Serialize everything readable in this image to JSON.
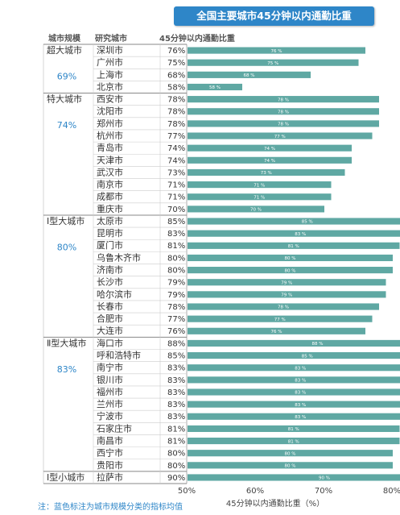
{
  "title": "全国主要城市45分钟以内通勤比重",
  "headers": {
    "category": "城市规模",
    "city": "研究城市",
    "ratio": "45分钟以内通勤比重"
  },
  "note": "注：蓝色标注为城市规模分类的指标均值",
  "colors": {
    "bar": "#5fa8a3",
    "title_bg": "#2e86c8",
    "avg_text": "#2e86c8"
  },
  "chart_data": {
    "type": "bar",
    "orientation": "horizontal",
    "xlabel": "45分钟以内通勤比重（%）",
    "xlim": [
      50,
      100
    ],
    "xticks": [
      "50%",
      "60%",
      "70%",
      "80%",
      "90%",
      "100%"
    ],
    "groups": [
      {
        "name": "超大城市",
        "avg": "69%",
        "cities": [
          "深圳市",
          "广州市",
          "上海市",
          "北京市"
        ],
        "values": [
          76,
          75,
          68,
          58
        ]
      },
      {
        "name": "特大城市",
        "avg": "74%",
        "cities": [
          "西安市",
          "沈阳市",
          "郑州市",
          "杭州市",
          "青岛市",
          "天津市",
          "武汉市",
          "南京市",
          "成都市",
          "重庆市"
        ],
        "values": [
          78,
          78,
          78,
          77,
          74,
          74,
          73,
          71,
          71,
          70
        ]
      },
      {
        "name": "Ⅰ型大城市",
        "avg": "80%",
        "cities": [
          "太原市",
          "昆明市",
          "厦门市",
          "乌鲁木齐市",
          "济南市",
          "长沙市",
          "哈尔滨市",
          "长春市",
          "合肥市",
          "大连市"
        ],
        "values": [
          85,
          83,
          81,
          80,
          80,
          79,
          79,
          78,
          77,
          76
        ]
      },
      {
        "name": "Ⅱ型大城市",
        "avg": "83%",
        "cities": [
          "海口市",
          "呼和浩特市",
          "南宁市",
          "银川市",
          "福州市",
          "兰州市",
          "宁波市",
          "石家庄市",
          "南昌市",
          "西宁市",
          "贵阳市"
        ],
        "values": [
          88,
          85,
          83,
          83,
          83,
          83,
          83,
          81,
          81,
          80,
          80
        ]
      },
      {
        "name": "Ⅰ型小城市",
        "avg": "",
        "cities": [
          "拉萨市"
        ],
        "values": [
          90
        ]
      }
    ],
    "value_labels": [
      "%",
      "%"
    ]
  }
}
